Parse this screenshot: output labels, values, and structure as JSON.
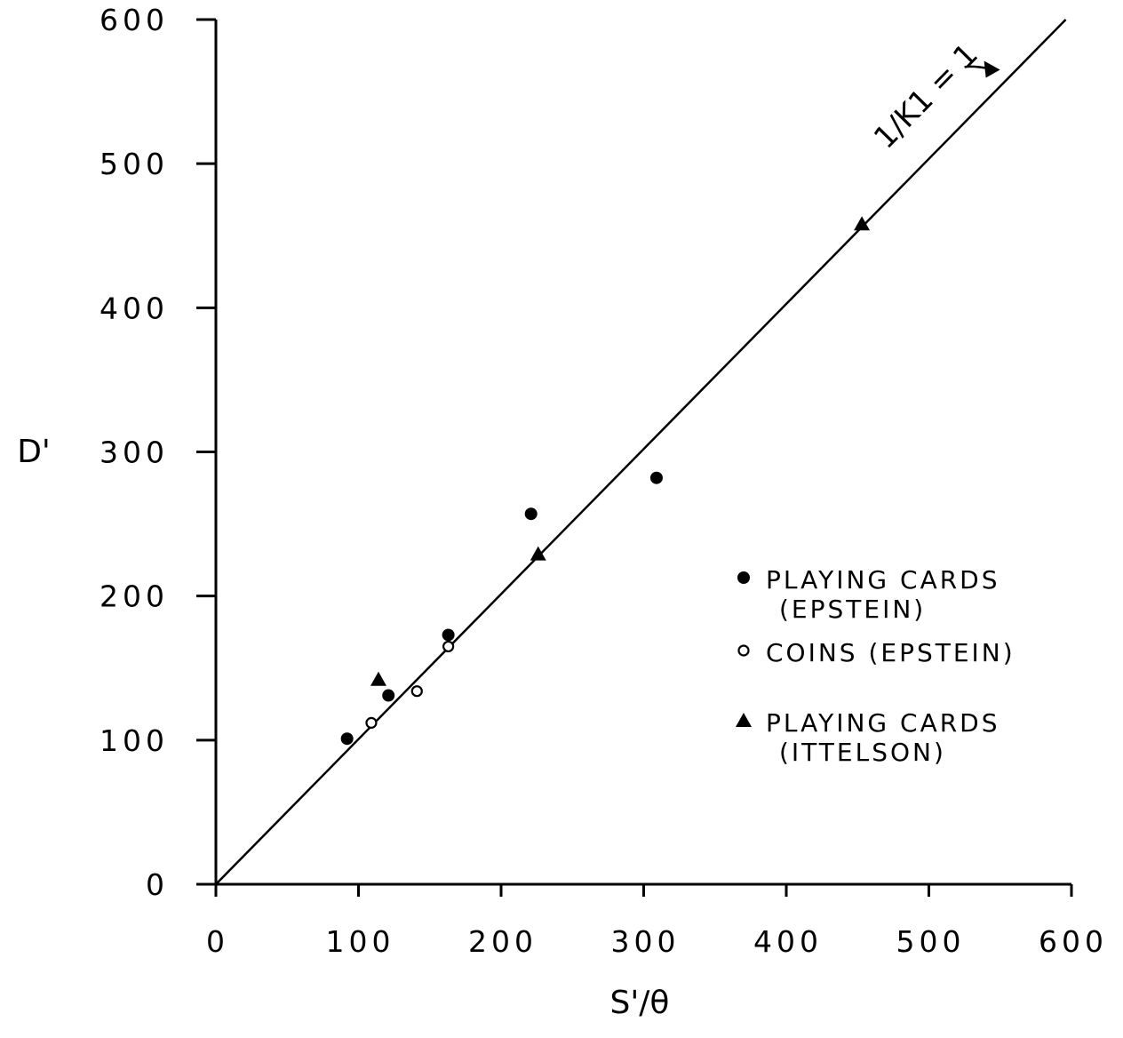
{
  "chart_data": {
    "type": "scatter",
    "xlabel": "S'/θ",
    "ylabel": "D'",
    "xlim": [
      0,
      600
    ],
    "ylim": [
      0,
      600
    ],
    "xticks": [
      "0",
      "100",
      "200",
      "300",
      "400",
      "500",
      "600"
    ],
    "yticks": [
      "0",
      "100",
      "200",
      "300",
      "400",
      "500",
      "600"
    ],
    "grid": false,
    "legend_position": "right",
    "series": [
      {
        "name": "PLAYING CARDS (EPSTEIN)",
        "legend_lines": [
          "PLAYING CARDS",
          "(EPSTEIN)"
        ],
        "marker": "filled-circle",
        "points": [
          [
            92,
            101
          ],
          [
            121,
            131
          ],
          [
            163,
            173
          ],
          [
            221,
            257
          ],
          [
            309,
            282
          ]
        ]
      },
      {
        "name": "COINS (EPSTEIN)",
        "legend_lines": [
          "COINS (EPSTEIN)"
        ],
        "marker": "open-circle",
        "points": [
          [
            109,
            112
          ],
          [
            141,
            134
          ],
          [
            163,
            165
          ]
        ]
      },
      {
        "name": "PLAYING CARDS (ITTELSON)",
        "legend_lines": [
          "PLAYING CARDS",
          "(ITTELSON)"
        ],
        "marker": "filled-triangle",
        "points": [
          [
            114,
            142
          ],
          [
            226,
            229
          ],
          [
            453,
            458
          ]
        ]
      }
    ],
    "reference_line": {
      "label": "1/K1 = 1",
      "from": [
        0,
        0
      ],
      "to": [
        596,
        600
      ]
    }
  }
}
